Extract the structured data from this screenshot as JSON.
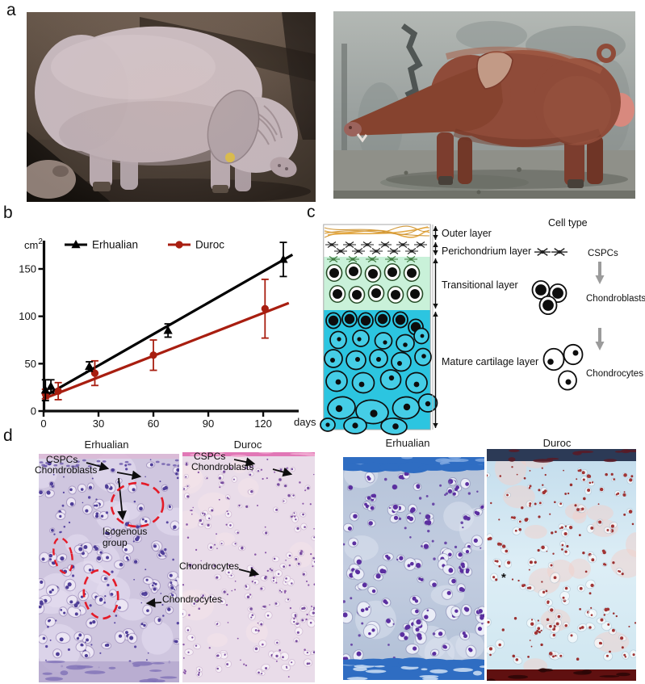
{
  "colors": {
    "duroc_red": "#a81e10",
    "annotation_dash_red": "#e41b28",
    "transitional_green": "#c9f1d9",
    "mature_cyan": "#2cc5e0",
    "outer_fiber_orange": "#e2a43c"
  },
  "panels": {
    "a": {
      "label": "a"
    },
    "b": {
      "label": "b"
    },
    "c": {
      "label": "c",
      "cell_type_header": "Cell type",
      "layers": [
        {
          "name": "Outer layer"
        },
        {
          "name": "Perichondrium layer"
        },
        {
          "name": "Transitional layer"
        },
        {
          "name": "Mature cartilage layer"
        }
      ],
      "cell_types": [
        {
          "name": "CSPCs"
        },
        {
          "name": "Chondroblasts"
        },
        {
          "name": "Chondrocytes"
        }
      ]
    },
    "d": {
      "label": "d",
      "he": {
        "erhualian": {
          "title": "Erhualian",
          "cspcs": "CSPCs",
          "chondroblasts": "Chondroblasts",
          "isogenous": "Isogenous group",
          "chondrocytes": "Chondrocytes"
        },
        "duroc": {
          "title": "Duroc",
          "cspcs": "CSPCs",
          "chondroblasts": "Chondroblasts",
          "chondrocytes": "Chondrocytes"
        }
      },
      "stain": {
        "erhualian": {
          "title": "Erhualian"
        },
        "duroc": {
          "title": "Duroc",
          "asterisk": "*"
        }
      }
    }
  },
  "chart_data": {
    "type": "line",
    "title": "",
    "xlabel": "days",
    "ylabel": "cm2",
    "xlim": [
      0,
      140
    ],
    "ylim": [
      0,
      178
    ],
    "xticks": [
      0,
      30,
      60,
      90,
      120
    ],
    "yticks": [
      0,
      50,
      100,
      150
    ],
    "grid": false,
    "legend_position": "top",
    "series": [
      {
        "name": "Erhualian",
        "color": "#000000",
        "marker": "triangle",
        "x": [
          1,
          4,
          25,
          68,
          131
        ],
        "y": [
          22,
          26,
          47,
          85,
          160
        ],
        "yerr": [
          11,
          7,
          5,
          7,
          18
        ],
        "trend": {
          "x": [
            0,
            136
          ],
          "y": [
            15,
            165
          ]
        }
      },
      {
        "name": "Duroc",
        "color": "#a81e10",
        "marker": "circle",
        "x": [
          1,
          8,
          28,
          60,
          121
        ],
        "y": [
          18,
          21,
          40,
          59,
          108
        ],
        "yerr": [
          5,
          9,
          13,
          16,
          31
        ],
        "trend": {
          "x": [
            0,
            134
          ],
          "y": [
            13,
            114
          ]
        }
      }
    ]
  }
}
